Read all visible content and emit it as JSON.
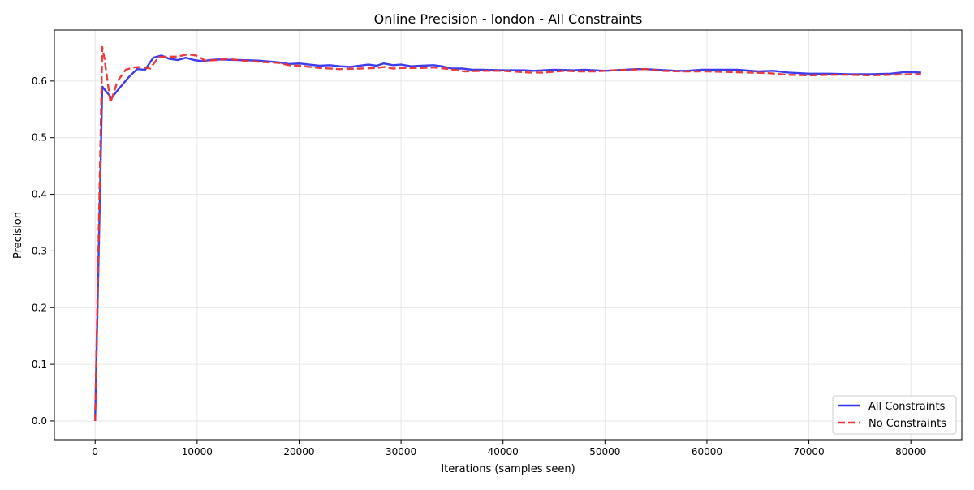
{
  "chart_data": {
    "type": "line",
    "title": "Online Precision - london - All Constraints",
    "xlabel": "Iterations (samples seen)",
    "ylabel": "Precision",
    "xlim": [
      -4000,
      85000
    ],
    "ylim": [
      -0.033,
      0.69
    ],
    "x_ticks": [
      0,
      10000,
      20000,
      30000,
      40000,
      50000,
      60000,
      70000,
      80000
    ],
    "x_tick_labels": [
      "0",
      "10000",
      "20000",
      "30000",
      "40000",
      "50000",
      "60000",
      "70000",
      "80000"
    ],
    "y_ticks": [
      0.0,
      0.1,
      0.2,
      0.3,
      0.4,
      0.5,
      0.6
    ],
    "y_tick_labels": [
      "0.0",
      "0.1",
      "0.2",
      "0.3",
      "0.4",
      "0.5",
      "0.6"
    ],
    "grid": true,
    "legend_position": "lower-right",
    "series": [
      {
        "name": "All Constraints",
        "color": "#3333ee",
        "style": "solid",
        "points": [
          [
            0,
            0.0
          ],
          [
            700,
            0.59
          ],
          [
            1600,
            0.57
          ],
          [
            2500,
            0.59
          ],
          [
            3300,
            0.607
          ],
          [
            4100,
            0.621
          ],
          [
            4900,
            0.62
          ],
          [
            5700,
            0.641
          ],
          [
            6500,
            0.645
          ],
          [
            7300,
            0.639
          ],
          [
            8100,
            0.637
          ],
          [
            8900,
            0.641
          ],
          [
            9700,
            0.637
          ],
          [
            10500,
            0.635
          ],
          [
            11300,
            0.637
          ],
          [
            12000,
            0.638
          ],
          [
            14000,
            0.637
          ],
          [
            16000,
            0.636
          ],
          [
            18000,
            0.633
          ],
          [
            19000,
            0.63
          ],
          [
            20000,
            0.631
          ],
          [
            21000,
            0.629
          ],
          [
            22000,
            0.627
          ],
          [
            23000,
            0.628
          ],
          [
            24000,
            0.626
          ],
          [
            25000,
            0.625
          ],
          [
            26800,
            0.629
          ],
          [
            27600,
            0.627
          ],
          [
            28300,
            0.631
          ],
          [
            29200,
            0.628
          ],
          [
            30000,
            0.629
          ],
          [
            31000,
            0.626
          ],
          [
            32000,
            0.627
          ],
          [
            33200,
            0.628
          ],
          [
            34000,
            0.626
          ],
          [
            35000,
            0.622
          ],
          [
            36000,
            0.622
          ],
          [
            37000,
            0.62
          ],
          [
            38000,
            0.62
          ],
          [
            40000,
            0.619
          ],
          [
            42000,
            0.619
          ],
          [
            43000,
            0.618
          ],
          [
            45000,
            0.62
          ],
          [
            47000,
            0.619
          ],
          [
            48000,
            0.62
          ],
          [
            50000,
            0.618
          ],
          [
            52000,
            0.62
          ],
          [
            53000,
            0.621
          ],
          [
            54000,
            0.621
          ],
          [
            55000,
            0.62
          ],
          [
            56000,
            0.619
          ],
          [
            57000,
            0.618
          ],
          [
            58000,
            0.618
          ],
          [
            59500,
            0.62
          ],
          [
            61000,
            0.62
          ],
          [
            63000,
            0.62
          ],
          [
            65000,
            0.617
          ],
          [
            66500,
            0.618
          ],
          [
            68000,
            0.615
          ],
          [
            70000,
            0.613
          ],
          [
            72000,
            0.613
          ],
          [
            74000,
            0.612
          ],
          [
            76000,
            0.612
          ],
          [
            78000,
            0.613
          ],
          [
            79500,
            0.616
          ],
          [
            81000,
            0.615
          ]
        ]
      },
      {
        "name": "No Constraints",
        "color": "#ee3333",
        "style": "dashed",
        "points": [
          [
            0,
            0.0
          ],
          [
            700,
            0.66
          ],
          [
            900,
            0.64
          ],
          [
            1500,
            0.562
          ],
          [
            2200,
            0.6
          ],
          [
            3000,
            0.62
          ],
          [
            3800,
            0.624
          ],
          [
            4600,
            0.625
          ],
          [
            5400,
            0.622
          ],
          [
            6200,
            0.642
          ],
          [
            7000,
            0.643
          ],
          [
            8000,
            0.643
          ],
          [
            9100,
            0.647
          ],
          [
            9900,
            0.645
          ],
          [
            10800,
            0.636
          ],
          [
            12000,
            0.637
          ],
          [
            13000,
            0.639
          ],
          [
            14500,
            0.636
          ],
          [
            16000,
            0.634
          ],
          [
            18000,
            0.632
          ],
          [
            19000,
            0.628
          ],
          [
            20000,
            0.627
          ],
          [
            22000,
            0.623
          ],
          [
            24000,
            0.621
          ],
          [
            26000,
            0.622
          ],
          [
            27600,
            0.623
          ],
          [
            28400,
            0.625
          ],
          [
            29200,
            0.622
          ],
          [
            30000,
            0.623
          ],
          [
            32000,
            0.623
          ],
          [
            33200,
            0.624
          ],
          [
            34300,
            0.622
          ],
          [
            35500,
            0.619
          ],
          [
            36200,
            0.617
          ],
          [
            38000,
            0.618
          ],
          [
            40000,
            0.618
          ],
          [
            42500,
            0.615
          ],
          [
            44000,
            0.615
          ],
          [
            46000,
            0.618
          ],
          [
            47500,
            0.617
          ],
          [
            49000,
            0.617
          ],
          [
            51000,
            0.619
          ],
          [
            52500,
            0.62
          ],
          [
            54000,
            0.621
          ],
          [
            55500,
            0.618
          ],
          [
            57500,
            0.617
          ],
          [
            60000,
            0.617
          ],
          [
            62000,
            0.616
          ],
          [
            64000,
            0.615
          ],
          [
            66000,
            0.614
          ],
          [
            68000,
            0.611
          ],
          [
            70000,
            0.61
          ],
          [
            72000,
            0.611
          ],
          [
            74000,
            0.611
          ],
          [
            76000,
            0.61
          ],
          [
            78000,
            0.611
          ],
          [
            80000,
            0.612
          ],
          [
            81000,
            0.612
          ]
        ]
      }
    ]
  }
}
